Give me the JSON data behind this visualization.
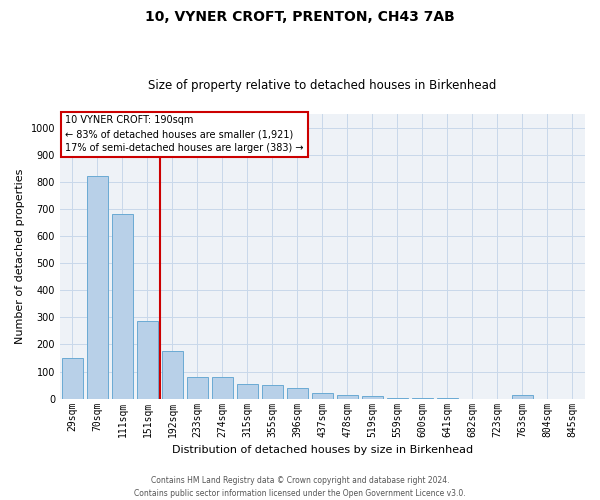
{
  "title": "10, VYNER CROFT, PRENTON, CH43 7AB",
  "subtitle": "Size of property relative to detached houses in Birkenhead",
  "xlabel": "Distribution of detached houses by size in Birkenhead",
  "ylabel": "Number of detached properties",
  "categories": [
    "29sqm",
    "70sqm",
    "111sqm",
    "151sqm",
    "192sqm",
    "233sqm",
    "274sqm",
    "315sqm",
    "355sqm",
    "396sqm",
    "437sqm",
    "478sqm",
    "519sqm",
    "559sqm",
    "600sqm",
    "641sqm",
    "682sqm",
    "723sqm",
    "763sqm",
    "804sqm",
    "845sqm"
  ],
  "values": [
    150,
    820,
    680,
    285,
    175,
    80,
    78,
    55,
    50,
    40,
    22,
    12,
    8,
    2,
    2,
    2,
    0,
    0,
    12,
    0,
    0
  ],
  "bar_color": "#b8d0e8",
  "bar_edge_color": "#6aaad4",
  "prop_line_color": "#cc0000",
  "annotation_title": "10 VYNER CROFT: 190sqm",
  "annotation_line1": "← 83% of detached houses are smaller (1,921)",
  "annotation_line2": "17% of semi-detached houses are larger (383) →",
  "annotation_box_color": "#cc0000",
  "grid_color": "#c8d8ea",
  "background_color": "#eef2f7",
  "footer_line1": "Contains HM Land Registry data © Crown copyright and database right 2024.",
  "footer_line2": "Contains public sector information licensed under the Open Government Licence v3.0.",
  "ylim": [
    0,
    1050
  ],
  "yticks": [
    0,
    100,
    200,
    300,
    400,
    500,
    600,
    700,
    800,
    900,
    1000
  ],
  "title_fontsize": 10,
  "subtitle_fontsize": 8.5,
  "xlabel_fontsize": 8,
  "ylabel_fontsize": 8,
  "tick_fontsize": 7,
  "footer_fontsize": 5.5,
  "annot_fontsize": 7,
  "prop_bin_index": 4
}
